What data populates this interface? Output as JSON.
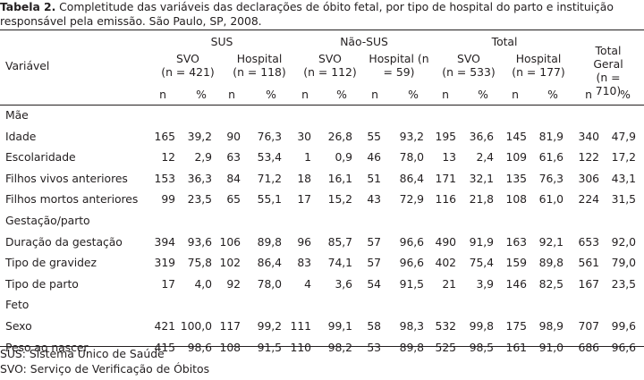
{
  "caption": {
    "label": "Tabela 2.",
    "text": " Completitude das variáveis das declarações de óbito fetal, por tipo de hospital do parto e instituição responsável pela emissão. São Paulo, SP, 2008."
  },
  "header": {
    "variable_label": "Variável",
    "groups": [
      "SUS",
      "Não-SUS",
      "Total"
    ],
    "subgroups": [
      {
        "l1": "SVO",
        "l2": "(n = 421)"
      },
      {
        "l1": "Hospital",
        "l2": "(n = 118)"
      },
      {
        "l1": "SVO",
        "l2": "(n = 112)"
      },
      {
        "l1": "Hospital (n",
        "l2": "= 59)"
      },
      {
        "l1": "SVO",
        "l2": "(n = 533)"
      },
      {
        "l1": "Hospital",
        "l2": "(n = 177)"
      }
    ],
    "total_geral": {
      "l1": "Total Geral",
      "l2": "(n = 710)"
    },
    "n_label": "n",
    "pct_label": "%"
  },
  "rows": [
    {
      "type": "section",
      "label": "Mãe"
    },
    {
      "type": "data",
      "label": "Idade",
      "values": [
        "165",
        "39,2",
        "90",
        "76,3",
        "30",
        "26,8",
        "55",
        "93,2",
        "195",
        "36,6",
        "145",
        "81,9",
        "340",
        "47,9"
      ]
    },
    {
      "type": "data",
      "label": "Escolaridade",
      "values": [
        "12",
        "2,9",
        "63",
        "53,4",
        "1",
        "0,9",
        "46",
        "78,0",
        "13",
        "2,4",
        "109",
        "61,6",
        "122",
        "17,2"
      ]
    },
    {
      "type": "data",
      "label": "Filhos vivos anteriores",
      "values": [
        "153",
        "36,3",
        "84",
        "71,2",
        "18",
        "16,1",
        "51",
        "86,4",
        "171",
        "32,1",
        "135",
        "76,3",
        "306",
        "43,1"
      ]
    },
    {
      "type": "data",
      "label": "Filhos mortos anteriores",
      "values": [
        "99",
        "23,5",
        "65",
        "55,1",
        "17",
        "15,2",
        "43",
        "72,9",
        "116",
        "21,8",
        "108",
        "61,0",
        "224",
        "31,5"
      ]
    },
    {
      "type": "section",
      "label": "Gestação/parto"
    },
    {
      "type": "data",
      "label": "Duração da gestação",
      "values": [
        "394",
        "93,6",
        "106",
        "89,8",
        "96",
        "85,7",
        "57",
        "96,6",
        "490",
        "91,9",
        "163",
        "92,1",
        "653",
        "92,0"
      ]
    },
    {
      "type": "data",
      "label": "Tipo de gravidez",
      "values": [
        "319",
        "75,8",
        "102",
        "86,4",
        "83",
        "74,1",
        "57",
        "96,6",
        "402",
        "75,4",
        "159",
        "89,8",
        "561",
        "79,0"
      ]
    },
    {
      "type": "data",
      "label": "Tipo de parto",
      "values": [
        "17",
        "4,0",
        "92",
        "78,0",
        "4",
        "3,6",
        "54",
        "91,5",
        "21",
        "3,9",
        "146",
        "82,5",
        "167",
        "23,5"
      ]
    },
    {
      "type": "section",
      "label": "Feto"
    },
    {
      "type": "data",
      "label": "Sexo",
      "values": [
        "421",
        "100,0",
        "117",
        "99,2",
        "111",
        "99,1",
        "58",
        "98,3",
        "532",
        "99,8",
        "175",
        "98,9",
        "707",
        "99,6"
      ]
    },
    {
      "type": "data",
      "label": "Peso ao nascer",
      "values": [
        "415",
        "98,6",
        "108",
        "91,5",
        "110",
        "98,2",
        "53",
        "89,8",
        "525",
        "98,5",
        "161",
        "91,0",
        "686",
        "96,6"
      ]
    }
  ],
  "footnotes": [
    "SUS: Sistema Único de Saúde",
    "SVO: Serviço de Verificação de Óbitos"
  ]
}
